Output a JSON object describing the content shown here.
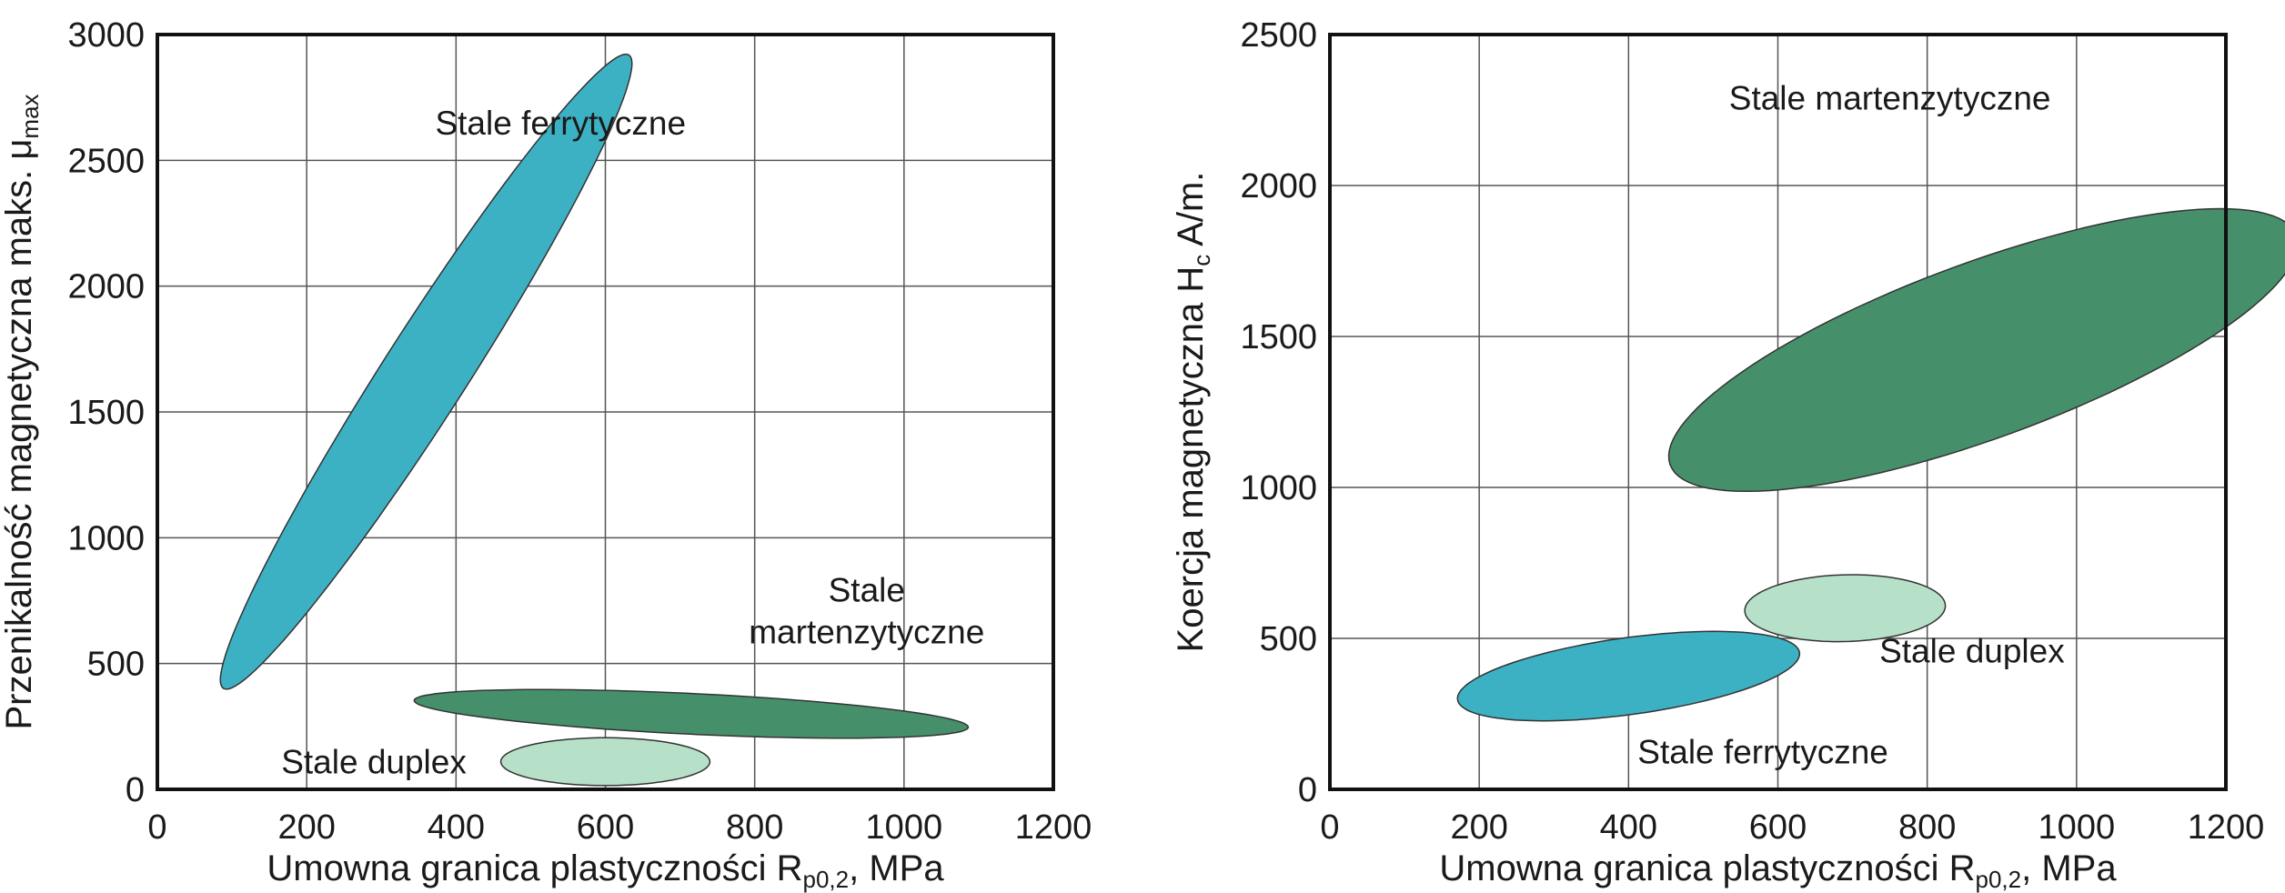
{
  "chart_data": [
    {
      "type": "scatter",
      "xlim": [
        0,
        1200
      ],
      "ylim": [
        0,
        3000
      ],
      "x_ticks": [
        "0",
        "200",
        "400",
        "600",
        "800",
        "1000",
        "1200"
      ],
      "y_ticks": [
        "0",
        "500",
        "1000",
        "1500",
        "2000",
        "2500",
        "3000"
      ],
      "grid": true,
      "xlabel": {
        "main": "Umowna granica plastyczności R",
        "sub": "p0,2",
        "tail": ", MPa"
      },
      "ylabel": {
        "main": "Przenikalność magnetyczna maks. μ",
        "sub": "max",
        "tail": ""
      },
      "regions": [
        {
          "label_lines": [
            "Stale ferrytyczne"
          ],
          "color": "#3db1c4",
          "center": [
            360,
            1660
          ],
          "semi_major": 1290,
          "semi_minor": 65,
          "angle_deg": 78,
          "label_at": [
            540,
            2650
          ]
        },
        {
          "label_lines": [
            "Stale",
            "martenzytyczne"
          ],
          "color": "#45906a",
          "center": [
            715,
            300
          ],
          "semi_major": 375,
          "semi_minor": 80,
          "angle_deg": -8.5,
          "label_at": [
            950,
            710
          ]
        },
        {
          "label_lines": [
            "Stale duplex"
          ],
          "color": "#b7e0c8",
          "center": [
            600,
            110
          ],
          "semi_major": 140,
          "semi_minor": 95,
          "angle_deg": 0,
          "label_at": [
            290,
            110
          ]
        }
      ]
    },
    {
      "type": "scatter",
      "xlim": [
        0,
        1200
      ],
      "ylim": [
        0,
        2500
      ],
      "x_ticks": [
        "0",
        "200",
        "400",
        "600",
        "800",
        "1000",
        "1200"
      ],
      "y_ticks": [
        "0",
        "500",
        "1000",
        "1500",
        "2000",
        "2500"
      ],
      "grid": true,
      "xlabel": {
        "main": "Umowna granica plastyczności R",
        "sub": "p0,2",
        "tail": ", MPa"
      },
      "ylabel": {
        "main": "Koercja magnetyczna H",
        "sub": "c",
        "tail": "  A/m."
      },
      "regions": [
        {
          "label_lines": [
            "Stale martenzytyczne"
          ],
          "color": "#45906a",
          "center": [
            875,
            1455
          ],
          "semi_major": 590,
          "semi_minor": 220,
          "angle_deg": 49,
          "label_at": [
            750,
            2290
          ]
        },
        {
          "label_lines": [
            "Stale ferrytyczne"
          ],
          "color": "#3db1c4",
          "center": [
            400,
            375
          ],
          "semi_major": 245,
          "semi_minor": 120,
          "angle_deg": 24,
          "label_at": [
            580,
            125
          ]
        },
        {
          "label_lines": [
            "Stale duplex"
          ],
          "color": "#b7e0c8",
          "center": [
            690,
            600
          ],
          "semi_major": 135,
          "semi_minor": 110,
          "angle_deg": 10,
          "label_at": [
            860,
            460
          ]
        }
      ]
    }
  ]
}
